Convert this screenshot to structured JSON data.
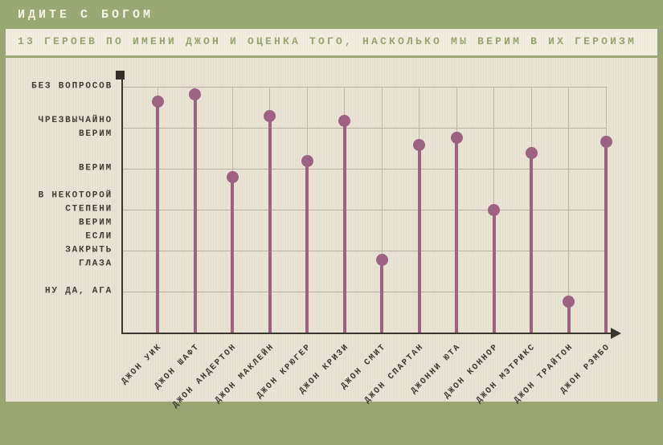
{
  "header": {
    "title": "ИДИТЕ С БОГОМ"
  },
  "subtitle": "13 ГЕРОЕВ ПО ИМЕНИ ДЖОН И ОЦЕНКА ТОГО, НАСКОЛЬКО МЫ ВЕРИМ В ИХ ГЕРОИЗМ",
  "chart_data": {
    "type": "lollipop",
    "title": "ИДИТЕ С БОГОМ",
    "subtitle": "13 ГЕРОЕВ ПО ИМЕНИ ДЖОН И ОЦЕНКА ТОГО, НАСКОЛЬКО МЫ ВЕРИМ В ИХ ГЕРОИЗМ",
    "categories": [
      "ДЖОН УИК",
      "ДЖОН ШАФТ",
      "ДЖОН АНДЕРТОН",
      "ДЖОН МАКЛЕЙН",
      "ДЖОН КРЮГЕР",
      "ДЖОН КРИЗИ",
      "ДЖОН СМИТ",
      "ДЖОН СПАРТАН",
      "ДЖОННИ ЮТА",
      "ДЖОН КОННОР",
      "ДЖОН МЭТРИКС",
      "ДЖОН ТРАЙТОН",
      "ДЖОН РЭМБО"
    ],
    "values": [
      5.63,
      5.82,
      3.8,
      5.29,
      4.18,
      5.16,
      1.78,
      4.57,
      4.76,
      3.0,
      4.39,
      0.76,
      4.65
    ],
    "y_ticks": [
      {
        "value": 6,
        "lines": [
          "БЕЗ ВОПРОСОВ"
        ]
      },
      {
        "value": 5,
        "lines": [
          "ЧРЕЗВЫЧАЙНО",
          "ВЕРИМ"
        ]
      },
      {
        "value": 4,
        "lines": [
          "ВЕРИМ"
        ]
      },
      {
        "value": 3,
        "lines": [
          "В НЕКОТОРОЙ",
          "СТЕПЕНИ",
          "ВЕРИМ"
        ]
      },
      {
        "value": 2,
        "lines": [
          "ЕСЛИ",
          "ЗАКРЫТЬ",
          "ГЛАЗА"
        ]
      },
      {
        "value": 1,
        "lines": [
          "НУ ДА, АГА"
        ]
      }
    ],
    "ylim": [
      0,
      6.2
    ],
    "grid": true,
    "legend": null,
    "xlabel": "",
    "ylabel": "",
    "colors": {
      "stem": "#9d6282",
      "dot": "#9d6282",
      "axis": "#3a352e",
      "gridline": "#b6ae9f",
      "header_bg": "#9aa876",
      "header_text": "#f7f3e4",
      "subtitle_text": "#95a46f",
      "subtitle_bg": "#f2eedf",
      "chart_bg": "#e8e3d5",
      "label_text": "#403c35"
    }
  }
}
